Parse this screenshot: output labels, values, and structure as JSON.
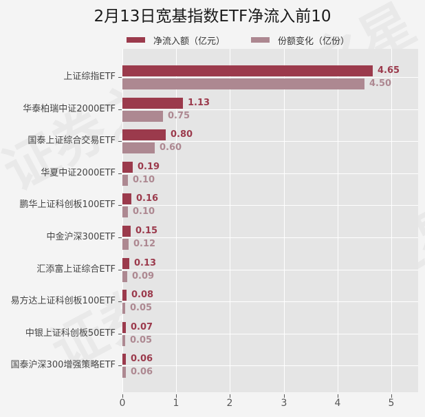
{
  "chart_data": {
    "type": "bar",
    "orientation": "horizontal",
    "title": "2月13日宽基指数ETF净流入前10",
    "xlabel": "",
    "ylabel": "",
    "xlim": [
      0,
      5.5
    ],
    "x_ticks": [
      0,
      1,
      2,
      3,
      4,
      5
    ],
    "grid": true,
    "legend_position": "top",
    "categories": [
      "上证综指ETF",
      "华泰柏瑞中证2000ETF",
      "国泰上证综合交易ETF",
      "华夏中证2000ETF",
      "鹏华上证科创板100ETF",
      "中金沪深300ETF",
      "汇添富上证综合ETF",
      "易方达上证科创板100ETF",
      "中银上证科创板50ETF",
      "国泰沪深300增强策略ETF"
    ],
    "series": [
      {
        "name": "净流入额（亿元）",
        "color": "#9b3a4c",
        "values": [
          4.65,
          1.13,
          0.8,
          0.19,
          0.16,
          0.15,
          0.13,
          0.08,
          0.07,
          0.06
        ],
        "labels": [
          "4.65",
          "1.13",
          "0.80",
          "0.19",
          "0.16",
          "0.15",
          "0.13",
          "0.08",
          "0.07",
          "0.06"
        ]
      },
      {
        "name": "份额变化（亿份）",
        "color": "#ad8891",
        "values": [
          4.5,
          0.75,
          0.6,
          0.1,
          0.1,
          0.12,
          0.09,
          0.05,
          0.05,
          0.06
        ],
        "labels": [
          "4.50",
          "0.75",
          "0.60",
          "0.10",
          "0.10",
          "0.12",
          "0.09",
          "0.05",
          "0.05",
          "0.06"
        ]
      }
    ]
  },
  "watermark": "证券之星",
  "colors": {
    "background": "#f4f4f4",
    "plot_background": "#e5e5e5",
    "net_inflow": "#9b3a4c",
    "share_change": "#ad8891"
  }
}
